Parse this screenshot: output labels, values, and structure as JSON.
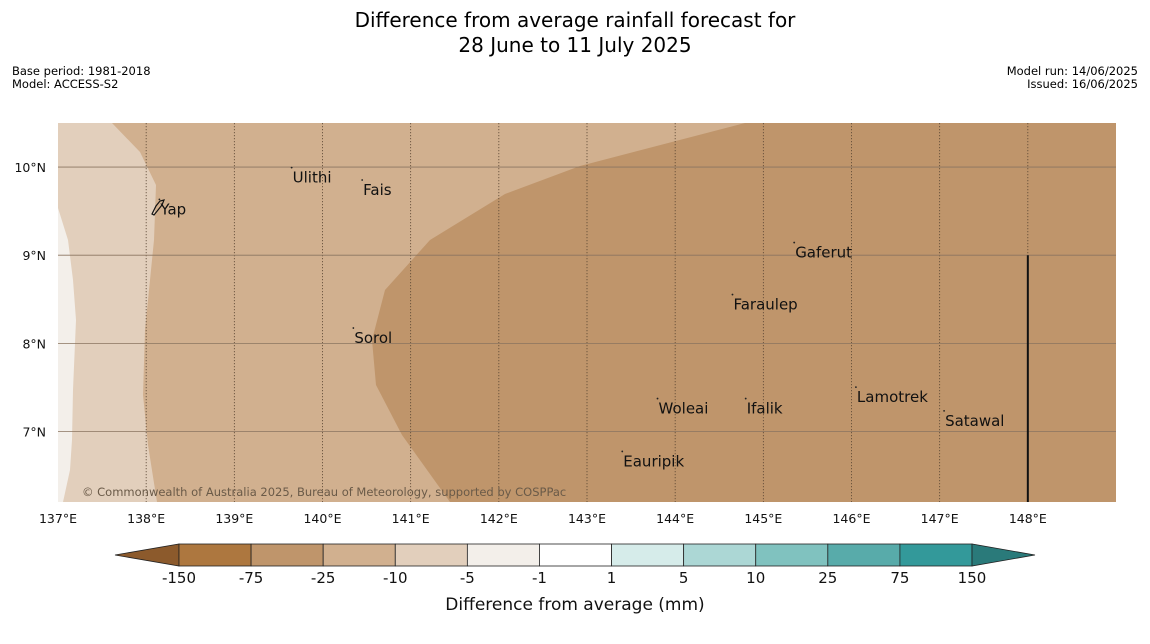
{
  "title": {
    "line1": "Difference from average rainfall forecast for",
    "line2": "28 June to 11 July 2025"
  },
  "meta_left": {
    "base_period": "Base period: 1981-2018",
    "model": "Model: ACCESS-S2"
  },
  "meta_right": {
    "model_run": "Model run: 14/06/2025",
    "issued": "Issued: 16/06/2025"
  },
  "map": {
    "lon_range": [
      137,
      149
    ],
    "lat_range": [
      6.2,
      10.5
    ],
    "lon_ticks": [
      {
        "value": 137,
        "label": "137°E"
      },
      {
        "value": 138,
        "label": "138°E"
      },
      {
        "value": 139,
        "label": "139°E"
      },
      {
        "value": 140,
        "label": "140°E"
      },
      {
        "value": 141,
        "label": "141°E"
      },
      {
        "value": 142,
        "label": "142°E"
      },
      {
        "value": 143,
        "label": "143°E"
      },
      {
        "value": 144,
        "label": "144°E"
      },
      {
        "value": 145,
        "label": "145°E"
      },
      {
        "value": 146,
        "label": "146°E"
      },
      {
        "value": 147,
        "label": "147°E"
      },
      {
        "value": 148,
        "label": "148°E"
      }
    ],
    "lat_ticks": [
      {
        "value": 10,
        "label": "10°N"
      },
      {
        "value": 9,
        "label": "9°N"
      },
      {
        "value": 8,
        "label": "8°N"
      },
      {
        "value": 7,
        "label": "7°N"
      }
    ],
    "places": [
      {
        "name": "Yap",
        "lon": 138.15,
        "lat": 9.52
      },
      {
        "name": "Ulithi",
        "lon": 139.65,
        "lat": 9.88
      },
      {
        "name": "Fais",
        "lon": 140.45,
        "lat": 9.74
      },
      {
        "name": "Gaferut",
        "lon": 145.35,
        "lat": 9.03
      },
      {
        "name": "Faraulep",
        "lon": 144.65,
        "lat": 8.44
      },
      {
        "name": "Sorol",
        "lon": 140.35,
        "lat": 8.06
      },
      {
        "name": "Woleai",
        "lon": 143.8,
        "lat": 7.26
      },
      {
        "name": "Ifalik",
        "lon": 144.8,
        "lat": 7.26
      },
      {
        "name": "Lamotrek",
        "lon": 146.05,
        "lat": 7.39
      },
      {
        "name": "Satawal",
        "lon": 147.05,
        "lat": 7.12
      },
      {
        "name": "Eauripik",
        "lon": 143.4,
        "lat": 6.66
      }
    ],
    "boundary_line": {
      "lon": 148,
      "lat_from": 6.2,
      "lat_to": 9.0
    },
    "copyright": "© Commonwealth of Australia 2025, Bureau of Meteorology, supported by COSPPac"
  },
  "colorbar": {
    "title": "Difference from average (mm)",
    "tick_labels": [
      "-150",
      "-75",
      "-25",
      "-10",
      "-5",
      "-1",
      "1",
      "5",
      "10",
      "25",
      "75",
      "150"
    ],
    "colors": {
      "under": "#8c5a2c",
      "bins": [
        "#ad773f",
        "#bf956b",
        "#d1b08f",
        "#e2cfbc",
        "#f3efea",
        "#ffffff",
        "#d6ecea",
        "#acd7d5",
        "#80c2bf",
        "#58abaa",
        "#33999a"
      ],
      "over": "#2a7a7a"
    }
  },
  "colors": {
    "band_minus_75_to_25": "#bf956b",
    "band_minus_25_to_10": "#d1b08f",
    "band_minus_10_to_5": "#e2cfbc",
    "band_minus_5_to_1": "#f3efea"
  }
}
